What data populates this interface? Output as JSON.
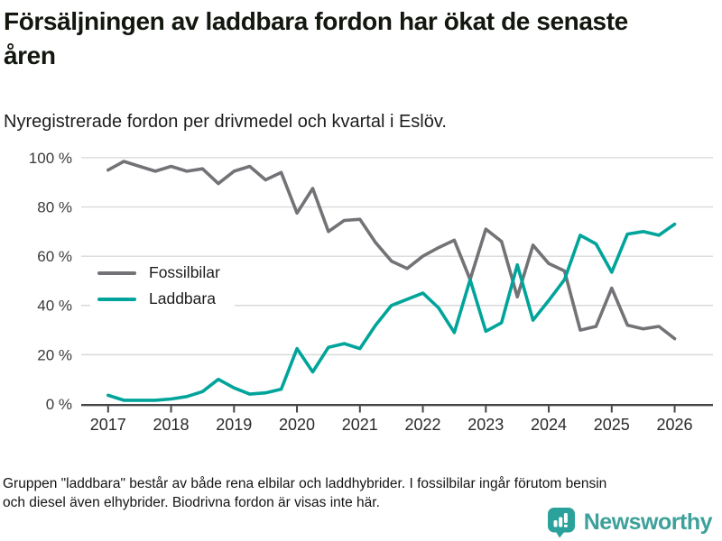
{
  "header": {
    "title": "Försäljningen av laddbara fordon har ökat de senaste åren",
    "subtitle": "Nyregistrerade fordon per drivmedel och kvartal i Eslöv."
  },
  "chart_data": {
    "type": "line",
    "title": "Försäljningen av laddbara fordon har ökat de senaste åren",
    "subtitle": "Nyregistrerade fordon per drivmedel och kvartal i Eslöv.",
    "x_unit": "quarter",
    "x_start": "2017 Q1",
    "x_end": "2026 Q1",
    "x_tick_labels": [
      "2017",
      "2018",
      "2019",
      "2020",
      "2021",
      "2022",
      "2023",
      "2024",
      "2025",
      "2026"
    ],
    "y_tick_labels": [
      "0 %",
      "20 %",
      "40 %",
      "60 %",
      "80 %",
      "100 %"
    ],
    "ylim": [
      0,
      100
    ],
    "y_unit": "%",
    "grid": "horizontal",
    "legend_position": "inside-left",
    "series": [
      {
        "name": "Fossilbilar",
        "color": "#737377",
        "values": [
          95,
          98.5,
          96.5,
          94.5,
          96.5,
          94.5,
          95.5,
          89.5,
          94.5,
          96.5,
          91,
          94,
          77.5,
          87.5,
          70,
          74.5,
          75,
          65.5,
          58,
          55,
          60,
          63.5,
          66.5,
          50.5,
          71,
          66,
          43.5,
          64.5,
          57,
          54,
          30,
          31.5,
          47,
          32,
          30.5,
          31.5,
          26.5
        ]
      },
      {
        "name": "Laddbara",
        "color": "#00a49a",
        "values": [
          3.5,
          1.5,
          1.5,
          1.5,
          2,
          3,
          5,
          10,
          6.5,
          4,
          4.5,
          6,
          22.5,
          13,
          23,
          24.5,
          22.5,
          32,
          40,
          42.5,
          45,
          39,
          29,
          50.5,
          29.5,
          33,
          56.5,
          34,
          42,
          50.5,
          68.5,
          65,
          53.5,
          69,
          70,
          68.5,
          73
        ]
      }
    ]
  },
  "footer": {
    "note_line1": "Gruppen \"laddbara\" består av både rena elbilar och laddhybrider. I fossilbilar ingår förutom bensin",
    "note_line2": "och diesel även elhybrider. Biodrivna fordon är visas inte här.",
    "brand": "Newsworthy",
    "brand_color": "#3da09a",
    "brand_icon": "speech-bubble-bar-chart"
  }
}
